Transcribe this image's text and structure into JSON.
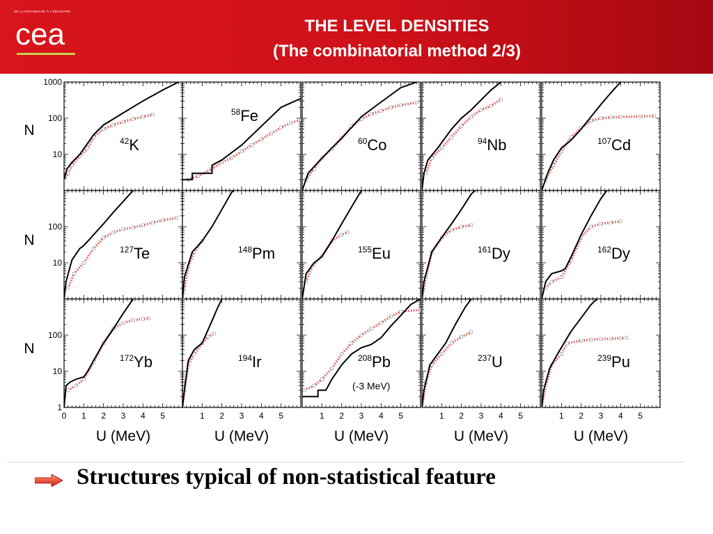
{
  "header": {
    "logo_text": "cea",
    "tagline": "DE LA RECHERCHE À L'INDUSTRIE",
    "title_line1": "THE LEVEL DENSITIES",
    "title_line2": "(The combinatorial method 2/3)",
    "background_color": "#d8141c"
  },
  "footer": {
    "takeaway": "Structures typical of non-statistical feature",
    "arrow_color": "#e02020"
  },
  "chart_data": {
    "type": "line",
    "layout": "grid 3 rows x 5 columns of small multiples sharing axes",
    "y_scale": "log",
    "ylim": [
      1,
      1000
    ],
    "y_ticks": [
      1,
      10,
      100,
      1000
    ],
    "y_tick_labels": [
      "1",
      "10",
      "100",
      "1000"
    ],
    "ylabel": "N",
    "xlim": [
      0,
      6
    ],
    "x_ticks": [
      0,
      1,
      2,
      3,
      4,
      5
    ],
    "xlabel": "U (MeV)",
    "series_styles": {
      "model": {
        "color": "#000000",
        "style": "solid line"
      },
      "experiment": {
        "color": "#e05050",
        "style": "red dotted squares"
      }
    },
    "panels": [
      {
        "row": 0,
        "col": 0,
        "mass": "42",
        "element": "K",
        "model": [
          [
            0,
            2
          ],
          [
            0.15,
            4
          ],
          [
            0.4,
            6
          ],
          [
            0.8,
            10
          ],
          [
            1.5,
            35
          ],
          [
            2,
            65
          ],
          [
            3,
            140
          ],
          [
            4,
            300
          ],
          [
            5,
            600
          ],
          [
            5.8,
            1000
          ]
        ],
        "experiment": [
          [
            0,
            2
          ],
          [
            0.2,
            3
          ],
          [
            0.4,
            5
          ],
          [
            0.8,
            9
          ],
          [
            1.2,
            15
          ],
          [
            1.5,
            30
          ],
          [
            2,
            50
          ],
          [
            2.5,
            65
          ],
          [
            3,
            80
          ],
          [
            3.5,
            95
          ],
          [
            4,
            110
          ],
          [
            4.5,
            125
          ]
        ]
      },
      {
        "row": 0,
        "col": 1,
        "mass": "58",
        "element": "Fe",
        "model": [
          [
            0,
            2
          ],
          [
            0.5,
            2
          ],
          [
            0.5,
            3
          ],
          [
            1.5,
            3
          ],
          [
            1.5,
            5
          ],
          [
            2,
            7
          ],
          [
            3,
            18
          ],
          [
            4,
            60
          ],
          [
            5,
            200
          ],
          [
            6,
            350
          ]
        ],
        "experiment": [
          [
            0.3,
            2
          ],
          [
            0.8,
            2.5
          ],
          [
            1.5,
            4
          ],
          [
            2,
            6
          ],
          [
            2.5,
            8
          ],
          [
            3,
            12
          ],
          [
            3.5,
            18
          ],
          [
            4,
            26
          ],
          [
            4.5,
            38
          ],
          [
            5,
            55
          ],
          [
            5.5,
            75
          ],
          [
            6,
            90
          ]
        ]
      },
      {
        "row": 0,
        "col": 2,
        "mass": "60",
        "element": "Co",
        "model": [
          [
            0,
            1
          ],
          [
            0.3,
            3
          ],
          [
            0.8,
            6
          ],
          [
            1.5,
            15
          ],
          [
            2,
            28
          ],
          [
            2.5,
            55
          ],
          [
            3,
            110
          ],
          [
            4,
            280
          ],
          [
            5,
            700
          ],
          [
            5.8,
            1000
          ]
        ],
        "experiment": [
          [
            0.2,
            2
          ],
          [
            0.6,
            4
          ],
          [
            1,
            8
          ],
          [
            1.5,
            14
          ],
          [
            2,
            28
          ],
          [
            2.5,
            60
          ],
          [
            3,
            95
          ],
          [
            3.5,
            130
          ],
          [
            4,
            160
          ],
          [
            4.5,
            200
          ],
          [
            5,
            230
          ],
          [
            5.8,
            270
          ]
        ]
      },
      {
        "row": 0,
        "col": 3,
        "mass": "94",
        "element": "Nb",
        "model": [
          [
            0,
            1
          ],
          [
            0.1,
            3
          ],
          [
            0.3,
            7
          ],
          [
            0.8,
            15
          ],
          [
            1.5,
            50
          ],
          [
            2,
            100
          ],
          [
            2.5,
            170
          ],
          [
            3,
            320
          ],
          [
            3.5,
            600
          ],
          [
            4,
            1000
          ]
        ],
        "experiment": [
          [
            0.2,
            3
          ],
          [
            0.5,
            8
          ],
          [
            1,
            15
          ],
          [
            1.5,
            30
          ],
          [
            2,
            60
          ],
          [
            2.5,
            110
          ],
          [
            3,
            170
          ],
          [
            3.5,
            220
          ],
          [
            4,
            330
          ]
        ]
      },
      {
        "row": 0,
        "col": 4,
        "mass": "107",
        "element": "Cd",
        "model": [
          [
            0,
            1
          ],
          [
            0.3,
            3
          ],
          [
            0.6,
            7
          ],
          [
            1,
            15
          ],
          [
            1.5,
            25
          ],
          [
            2,
            50
          ],
          [
            2.5,
            110
          ],
          [
            3,
            240
          ],
          [
            3.5,
            500
          ],
          [
            4,
            1000
          ]
        ],
        "experiment": [
          [
            0.2,
            2
          ],
          [
            0.6,
            5
          ],
          [
            1,
            12
          ],
          [
            1.5,
            30
          ],
          [
            2,
            55
          ],
          [
            2.5,
            85
          ],
          [
            3,
            100
          ],
          [
            3.5,
            105
          ],
          [
            4,
            108
          ],
          [
            5,
            112
          ],
          [
            5.7,
            115
          ]
        ]
      },
      {
        "row": 1,
        "col": 0,
        "mass": "127",
        "element": "Te",
        "model": [
          [
            0,
            1
          ],
          [
            0.1,
            3
          ],
          [
            0.4,
            12
          ],
          [
            0.8,
            25
          ],
          [
            1,
            30
          ],
          [
            1.5,
            60
          ],
          [
            2,
            120
          ],
          [
            2.5,
            250
          ],
          [
            3,
            500
          ],
          [
            3.5,
            1000
          ]
        ],
        "experiment": [
          [
            0.2,
            2
          ],
          [
            0.5,
            5
          ],
          [
            1,
            10
          ],
          [
            1.5,
            25
          ],
          [
            2,
            50
          ],
          [
            2.5,
            70
          ],
          [
            3,
            85
          ],
          [
            3.5,
            95
          ],
          [
            4,
            110
          ],
          [
            4.5,
            130
          ],
          [
            5,
            150
          ],
          [
            5.7,
            175
          ]
        ]
      },
      {
        "row": 1,
        "col": 1,
        "mass": "148",
        "element": "Pm",
        "model": [
          [
            0,
            1
          ],
          [
            0.1,
            4
          ],
          [
            0.5,
            20
          ],
          [
            1,
            40
          ],
          [
            1.5,
            100
          ],
          [
            2,
            300
          ],
          [
            2.5,
            900
          ],
          [
            2.6,
            1000
          ]
        ],
        "experiment": [
          [
            0,
            1
          ],
          [
            0.1,
            2
          ],
          [
            0.3,
            8
          ],
          [
            0.6,
            20
          ],
          [
            1,
            40
          ]
        ]
      },
      {
        "row": 1,
        "col": 2,
        "mass": "155",
        "element": "Eu",
        "model": [
          [
            0,
            1
          ],
          [
            0.2,
            5
          ],
          [
            0.6,
            10
          ],
          [
            1,
            15
          ],
          [
            1.5,
            40
          ],
          [
            2,
            120
          ],
          [
            2.5,
            350
          ],
          [
            3,
            1000
          ]
        ],
        "experiment": [
          [
            0.2,
            3
          ],
          [
            0.5,
            8
          ],
          [
            1,
            15
          ],
          [
            1.5,
            40
          ],
          [
            2,
            60
          ],
          [
            2.3,
            70
          ]
        ]
      },
      {
        "row": 1,
        "col": 3,
        "mass": "161",
        "element": "Dy",
        "model": [
          [
            0,
            1
          ],
          [
            0.1,
            3
          ],
          [
            0.5,
            20
          ],
          [
            1,
            50
          ],
          [
            1.5,
            120
          ],
          [
            2,
            300
          ],
          [
            2.5,
            800
          ],
          [
            2.7,
            1000
          ]
        ],
        "experiment": [
          [
            0,
            1
          ],
          [
            0.2,
            4
          ],
          [
            0.5,
            20
          ],
          [
            1,
            50
          ],
          [
            1.5,
            80
          ],
          [
            2,
            100
          ],
          [
            2.5,
            110
          ]
        ]
      },
      {
        "row": 1,
        "col": 4,
        "mass": "162",
        "element": "Dy",
        "model": [
          [
            0,
            1
          ],
          [
            0.2,
            3
          ],
          [
            0.5,
            5
          ],
          [
            1,
            6
          ],
          [
            1.2,
            7
          ],
          [
            1.5,
            15
          ],
          [
            2,
            60
          ],
          [
            2.5,
            200
          ],
          [
            3,
            600
          ],
          [
            3.3,
            1000
          ]
        ],
        "experiment": [
          [
            0.2,
            2
          ],
          [
            0.5,
            3
          ],
          [
            1,
            4
          ],
          [
            1.5,
            12
          ],
          [
            2,
            50
          ],
          [
            2.5,
            100
          ],
          [
            3,
            120
          ],
          [
            3.5,
            130
          ],
          [
            4,
            140
          ]
        ]
      },
      {
        "row": 2,
        "col": 0,
        "mass": "172",
        "element": "Yb",
        "model": [
          [
            0,
            1
          ],
          [
            0.1,
            4
          ],
          [
            0.3,
            5
          ],
          [
            0.6,
            6
          ],
          [
            1,
            7
          ],
          [
            1.2,
            10
          ],
          [
            1.5,
            20
          ],
          [
            2,
            60
          ],
          [
            2.5,
            150
          ],
          [
            3,
            400
          ],
          [
            3.5,
            1000
          ]
        ],
        "experiment": [
          [
            0.2,
            3
          ],
          [
            0.6,
            4
          ],
          [
            1,
            6
          ],
          [
            1.5,
            18
          ],
          [
            2,
            60
          ],
          [
            2.5,
            150
          ],
          [
            3,
            220
          ],
          [
            3.5,
            260
          ],
          [
            4,
            280
          ],
          [
            4.3,
            290
          ]
        ]
      },
      {
        "row": 2,
        "col": 1,
        "mass": "194",
        "element": "Ir",
        "model": [
          [
            0,
            1
          ],
          [
            0.1,
            3
          ],
          [
            0.3,
            20
          ],
          [
            0.6,
            40
          ],
          [
            1,
            60
          ],
          [
            1.5,
            250
          ],
          [
            1.8,
            600
          ],
          [
            2,
            1000
          ]
        ],
        "experiment": [
          [
            0,
            1
          ],
          [
            0.1,
            3
          ],
          [
            0.3,
            15
          ],
          [
            0.6,
            30
          ],
          [
            1,
            60
          ],
          [
            1.3,
            90
          ],
          [
            1.6,
            110
          ]
        ]
      },
      {
        "row": 2,
        "col": 2,
        "mass": "208",
        "element": "Pb",
        "note": "(-3 MeV)",
        "model": [
          [
            0,
            2
          ],
          [
            0.8,
            2
          ],
          [
            0.8,
            3
          ],
          [
            1.2,
            3
          ],
          [
            1.5,
            6
          ],
          [
            2,
            15
          ],
          [
            2.5,
            30
          ],
          [
            3,
            45
          ],
          [
            3.5,
            55
          ],
          [
            4,
            85
          ],
          [
            4.5,
            180
          ],
          [
            5,
            350
          ],
          [
            5.5,
            700
          ],
          [
            6,
            1000
          ]
        ],
        "experiment": [
          [
            0.1,
            3
          ],
          [
            0.6,
            4
          ],
          [
            1,
            6
          ],
          [
            1.5,
            12
          ],
          [
            2,
            30
          ],
          [
            2.5,
            60
          ],
          [
            3,
            100
          ],
          [
            3.5,
            150
          ],
          [
            4,
            220
          ],
          [
            4.5,
            330
          ],
          [
            5,
            450
          ],
          [
            6,
            500
          ]
        ]
      },
      {
        "row": 2,
        "col": 3,
        "mass": "237",
        "element": "U",
        "model": [
          [
            0,
            1
          ],
          [
            0.1,
            3
          ],
          [
            0.4,
            15
          ],
          [
            0.8,
            30
          ],
          [
            1.2,
            60
          ],
          [
            1.7,
            200
          ],
          [
            2.2,
            600
          ],
          [
            2.5,
            1000
          ]
        ],
        "experiment": [
          [
            0,
            1
          ],
          [
            0.2,
            5
          ],
          [
            0.5,
            15
          ],
          [
            1,
            30
          ],
          [
            1.5,
            60
          ],
          [
            2,
            90
          ],
          [
            2.5,
            120
          ]
        ]
      },
      {
        "row": 2,
        "col": 4,
        "mass": "239",
        "element": "Pu",
        "model": [
          [
            0,
            1
          ],
          [
            0.1,
            3
          ],
          [
            0.4,
            12
          ],
          [
            0.8,
            30
          ],
          [
            1.2,
            70
          ],
          [
            1.5,
            130
          ],
          [
            2,
            300
          ],
          [
            2.5,
            700
          ],
          [
            2.8,
            1000
          ]
        ],
        "experiment": [
          [
            0,
            1
          ],
          [
            0.2,
            4
          ],
          [
            0.5,
            15
          ],
          [
            1,
            30
          ],
          [
            1.3,
            60
          ],
          [
            2,
            70
          ],
          [
            2.5,
            75
          ],
          [
            3,
            78
          ],
          [
            3.5,
            80
          ],
          [
            4,
            82
          ],
          [
            4.3,
            85
          ]
        ]
      }
    ]
  }
}
